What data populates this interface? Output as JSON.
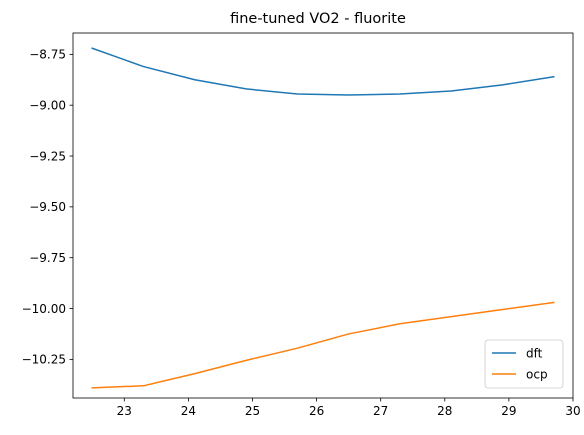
{
  "chart_data": {
    "type": "line",
    "title": "fine-tuned VO2 - fluorite",
    "xlabel": "",
    "ylabel": "",
    "xlim": [
      22.2,
      30.0
    ],
    "ylim": [
      -10.44,
      -8.645
    ],
    "x_ticks": [
      23,
      24,
      25,
      26,
      27,
      28,
      29,
      30
    ],
    "y_ticks": [
      -8.75,
      -9.0,
      -9.25,
      -9.5,
      -9.75,
      -10.0,
      -10.25
    ],
    "x_tick_labels": [
      "23",
      "24",
      "25",
      "26",
      "27",
      "28",
      "29",
      "30"
    ],
    "y_tick_labels": [
      "−8.75",
      "−9.00",
      "−9.25",
      "−9.50",
      "−9.75",
      "−10.00",
      "−10.25"
    ],
    "grid": false,
    "legend_position": "lower right",
    "series": [
      {
        "name": "dft",
        "color": "#1f77b4",
        "x": [
          22.5,
          23.3,
          24.1,
          24.9,
          25.7,
          26.5,
          27.3,
          28.1,
          28.9,
          29.7
        ],
        "y": [
          -8.72,
          -8.81,
          -8.875,
          -8.92,
          -8.945,
          -8.95,
          -8.945,
          -8.93,
          -8.9,
          -8.86
        ]
      },
      {
        "name": "ocp",
        "color": "#ff7f0e",
        "x": [
          22.5,
          23.3,
          24.1,
          24.9,
          25.7,
          26.5,
          27.3,
          28.1,
          28.9,
          29.7
        ],
        "y": [
          -10.39,
          -10.38,
          -10.32,
          -10.255,
          -10.195,
          -10.125,
          -10.075,
          -10.04,
          -10.005,
          -9.97
        ]
      }
    ]
  }
}
